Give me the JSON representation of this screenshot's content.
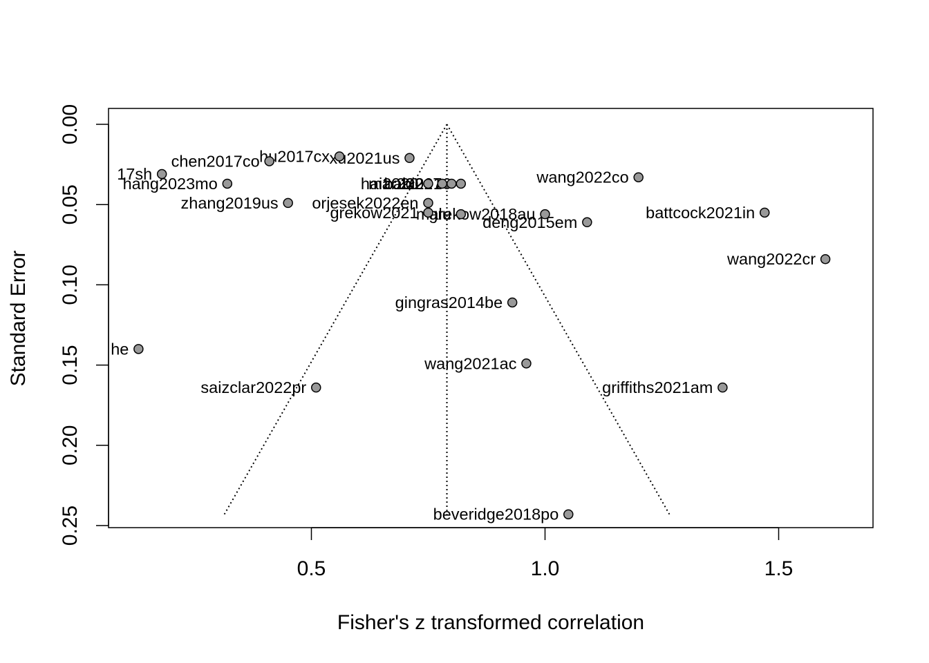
{
  "chart_data": {
    "type": "scatter",
    "subtype": "funnel",
    "xlabel": "Fisher's z transformed correlation",
    "ylabel": "Standard Error",
    "xlim": [
      0.0,
      1.67
    ],
    "ylim": [
      0.25,
      0.0
    ],
    "y_reversed": true,
    "xticks": [
      0.5,
      1.0,
      1.5
    ],
    "xtick_labels": [
      "0.5",
      "1.0",
      "1.5"
    ],
    "yticks": [
      0.0,
      0.05,
      0.1,
      0.15,
      0.2,
      0.25
    ],
    "ytick_labels": [
      "0.00",
      "0.05",
      "0.10",
      "0.15",
      "0.20",
      "0.25"
    ],
    "grid": false,
    "legend": "none",
    "point_fill": "#999999",
    "summary_estimate": 0.79,
    "funnel_se_max": 0.243,
    "funnel_z": 1.96,
    "points": [
      {
        "label": "xu2021us",
        "x": 0.71,
        "y": 0.021
      },
      {
        "label": "hu2017cx",
        "x": 0.56,
        "y": 0.02
      },
      {
        "label": "chen2017co",
        "x": 0.41,
        "y": 0.023
      },
      {
        "label": "17sh",
        "x": 0.18,
        "y": 0.031
      },
      {
        "label": "hang2023mo",
        "x": 0.32,
        "y": 0.037
      },
      {
        "label": "wang2022co",
        "x": 1.2,
        "y": 0.033
      },
      {
        "label": "bai2017",
        "x": 0.8,
        "y": 0.037
      },
      {
        "label": "bi2016",
        "x": 0.82,
        "y": 0.037
      },
      {
        "label": "hai2020",
        "x": 0.75,
        "y": 0.037
      },
      {
        "label": "mar2021",
        "x": 0.78,
        "y": 0.037
      },
      {
        "label": "zhang2019us",
        "x": 0.45,
        "y": 0.049
      },
      {
        "label": "orjesek2022en",
        "x": 0.75,
        "y": 0.049
      },
      {
        "label": "grekow2021",
        "x": 0.75,
        "y": 0.055
      },
      {
        "label": "grekow2018au",
        "x": 1.0,
        "y": 0.056
      },
      {
        "label": "malu",
        "x": 0.82,
        "y": 0.056
      },
      {
        "label": "deng2015em",
        "x": 1.09,
        "y": 0.061
      },
      {
        "label": "battcock2021in",
        "x": 1.47,
        "y": 0.055
      },
      {
        "label": "wang2022cr",
        "x": 1.6,
        "y": 0.084
      },
      {
        "label": "gingras2014be",
        "x": 0.93,
        "y": 0.111
      },
      {
        "label": "he",
        "x": 0.13,
        "y": 0.14
      },
      {
        "label": "wang2021ac",
        "x": 0.96,
        "y": 0.149
      },
      {
        "label": "saizclar2022pr",
        "x": 0.51,
        "y": 0.164
      },
      {
        "label": "griffiths2021am",
        "x": 1.38,
        "y": 0.164
      },
      {
        "label": "beveridge2018po",
        "x": 1.05,
        "y": 0.243
      }
    ],
    "visible_labels": [
      {
        "text": "xu2021us",
        "x": 0.71,
        "y": 0.021
      },
      {
        "text": "hu2017cx",
        "x": 0.56,
        "y": 0.02
      },
      {
        "text": "chen2017co",
        "x": 0.41,
        "y": 0.023
      },
      {
        "text": "17sh",
        "x": 0.18,
        "y": 0.031
      },
      {
        "text": "hang2023mo",
        "x": 0.32,
        "y": 0.037
      },
      {
        "text": "wang2022co",
        "x": 1.2,
        "y": 0.033
      },
      {
        "text": "bai2017",
        "x": 0.8,
        "y": 0.037
      },
      {
        "text": "bi2016",
        "x": 0.82,
        "y": 0.037
      },
      {
        "text": "hai2020",
        "x": 0.75,
        "y": 0.037
      },
      {
        "text": "mar2021",
        "x": 0.78,
        "y": 0.037
      },
      {
        "text": "zhang2019us",
        "x": 0.45,
        "y": 0.049
      },
      {
        "text": "orjesek2022en",
        "x": 0.75,
        "y": 0.049
      },
      {
        "text": "grekow2021",
        "x": 0.75,
        "y": 0.055
      },
      {
        "text": "grekow2018au",
        "x": 1.0,
        "y": 0.056
      },
      {
        "text": "malu",
        "x": 0.82,
        "y": 0.056
      },
      {
        "text": "deng2015em",
        "x": 1.09,
        "y": 0.061
      },
      {
        "text": "battcock2021in",
        "x": 1.47,
        "y": 0.055
      },
      {
        "text": "wang2022cr",
        "x": 1.6,
        "y": 0.084
      },
      {
        "text": "gingras2014be",
        "x": 0.93,
        "y": 0.111
      },
      {
        "text": "he",
        "x": 0.13,
        "y": 0.14
      },
      {
        "text": "wang2021ac",
        "x": 0.96,
        "y": 0.149
      },
      {
        "text": "saizclar2022pr",
        "x": 0.51,
        "y": 0.164
      },
      {
        "text": "griffiths2021am",
        "x": 1.38,
        "y": 0.164
      },
      {
        "text": "beveridge2018po",
        "x": 1.05,
        "y": 0.243
      }
    ]
  }
}
